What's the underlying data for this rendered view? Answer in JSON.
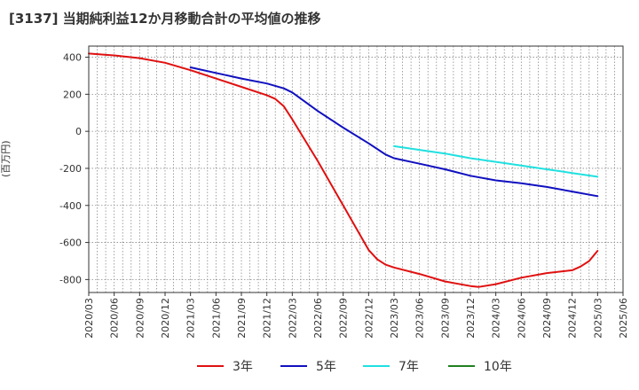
{
  "chart_data": {
    "type": "line",
    "title": "[3137]  当期純利益12か月移動合計の平均値の推移",
    "ylabel": "(百万円)",
    "ylim": [
      -870,
      460
    ],
    "y_ticks": [
      400,
      200,
      0,
      -200,
      -400,
      -600,
      -800
    ],
    "x_ticks": [
      "2020/03",
      "2020/06",
      "2020/09",
      "2020/12",
      "2021/03",
      "2021/06",
      "2021/09",
      "2021/12",
      "2022/03",
      "2022/06",
      "2022/09",
      "2022/12",
      "2023/03",
      "2023/06",
      "2023/09",
      "2023/12",
      "2024/03",
      "2024/06",
      "2024/09",
      "2024/12",
      "2025/03",
      "2025/06"
    ],
    "grid": true,
    "legend_position": "bottom",
    "series": [
      {
        "name": "3年",
        "color": "#e01010",
        "x": [
          "2020/03",
          "2020/06",
          "2020/09",
          "2020/12",
          "2021/03",
          "2021/06",
          "2021/09",
          "2021/12",
          "2022/01",
          "2022/02",
          "2022/03",
          "2022/06",
          "2022/09",
          "2022/12",
          "2023/01",
          "2023/02",
          "2023/03",
          "2023/06",
          "2023/09",
          "2023/12",
          "2024/01",
          "2024/03",
          "2024/06",
          "2024/09",
          "2024/12",
          "2025/01",
          "2025/02",
          "2025/03"
        ],
        "values": [
          420,
          410,
          395,
          370,
          330,
          285,
          240,
          195,
          175,
          135,
          65,
          -160,
          -400,
          -640,
          -690,
          -720,
          -735,
          -770,
          -810,
          -835,
          -840,
          -825,
          -790,
          -765,
          -750,
          -730,
          -700,
          -645
        ]
      },
      {
        "name": "5年",
        "color": "#1010c0",
        "x": [
          "2021/03",
          "2021/06",
          "2021/09",
          "2021/12",
          "2022/01",
          "2022/02",
          "2022/03",
          "2022/06",
          "2022/09",
          "2022/12",
          "2023/01",
          "2023/02",
          "2023/03",
          "2023/06",
          "2023/09",
          "2023/12",
          "2024/03",
          "2024/06",
          "2024/09",
          "2024/12",
          "2025/03"
        ],
        "values": [
          345,
          315,
          285,
          258,
          245,
          232,
          210,
          110,
          20,
          -65,
          -95,
          -125,
          -145,
          -175,
          -205,
          -240,
          -265,
          -280,
          -300,
          -325,
          -350
        ]
      },
      {
        "name": "7年",
        "color": "#20e0e0",
        "x": [
          "2023/03",
          "2023/06",
          "2023/09",
          "2023/12",
          "2024/03",
          "2024/06",
          "2024/09",
          "2024/12",
          "2025/03"
        ],
        "values": [
          -80,
          -100,
          -120,
          -145,
          -165,
          -185,
          -205,
          -225,
          -245
        ]
      },
      {
        "name": "10年",
        "color": "#208020",
        "x": [],
        "values": []
      }
    ]
  }
}
